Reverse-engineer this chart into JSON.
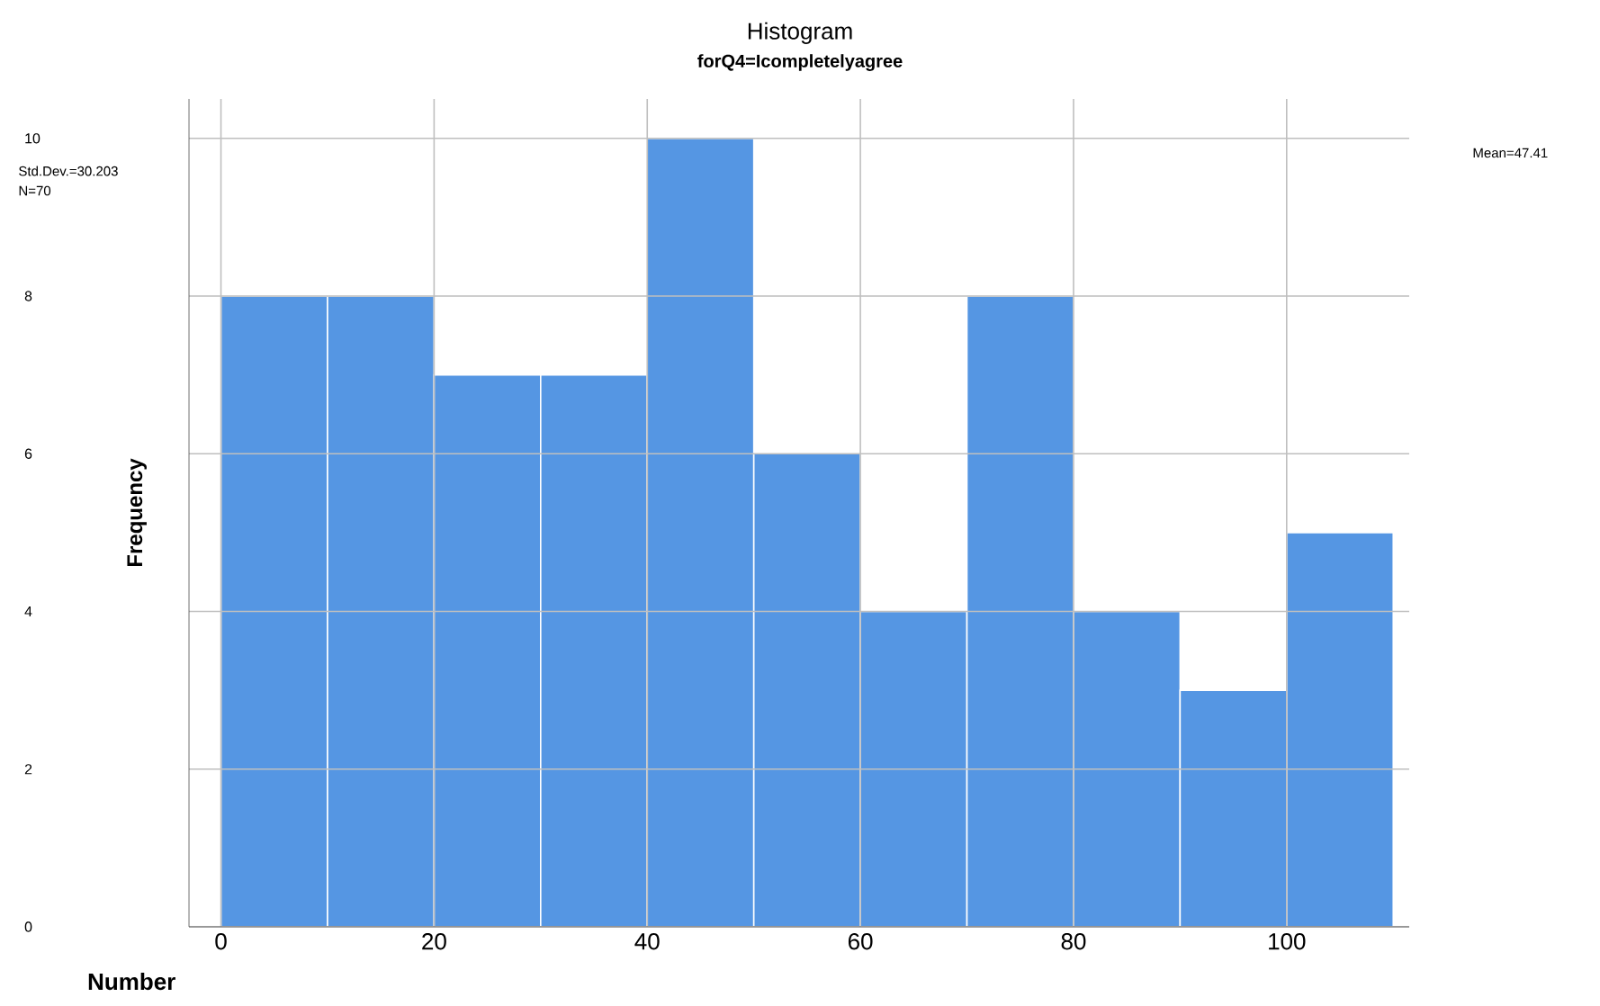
{
  "chart_data": {
    "type": "histogram",
    "title": "Histogram",
    "subtitle": "forQ4=Icompletelyagree",
    "xlabel": "Number",
    "ylabel": "Frequency",
    "bins": [
      0,
      10,
      20,
      30,
      40,
      50,
      60,
      70,
      80,
      90,
      100,
      110
    ],
    "values": [
      8,
      8,
      7,
      7,
      10,
      6,
      4,
      8,
      4,
      3,
      5
    ],
    "color": "#5596e3",
    "xlim": [
      -3,
      111.5
    ],
    "ylim": [
      0,
      10.5
    ],
    "xticks": [
      0,
      20,
      40,
      60,
      80,
      100
    ],
    "yticks": [
      0,
      2,
      4,
      6,
      8,
      10
    ],
    "grid": true,
    "annotations": [
      "Mean=47.41",
      "Std.Dev.=30.203",
      "N=70"
    ]
  }
}
